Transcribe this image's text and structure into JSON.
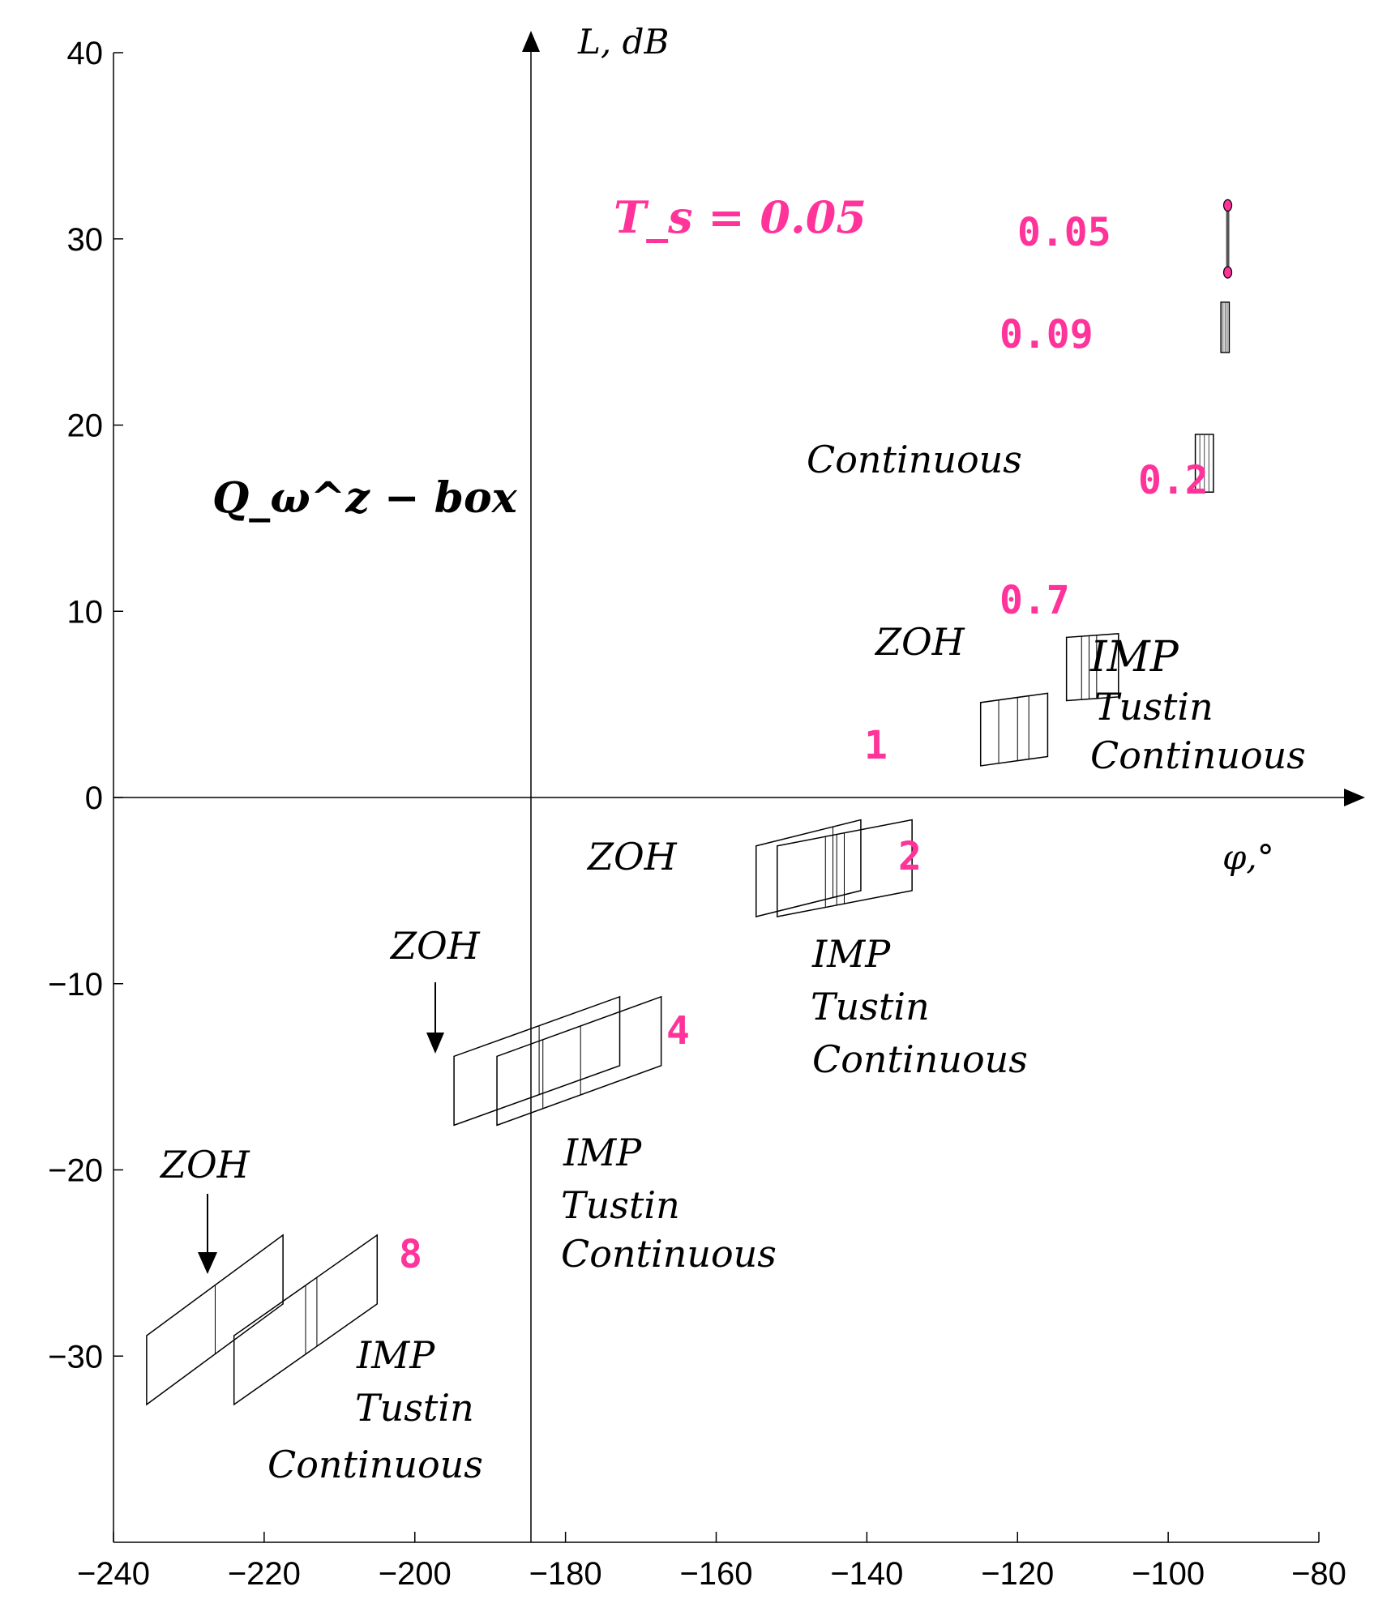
{
  "chart_data": {
    "type": "scatter",
    "title": "Q_ω^z − box",
    "subtitle": "T_s = 0.05",
    "xlabel": "φ,°",
    "ylabel": "L, dB",
    "xlim": [
      -240,
      -80
    ],
    "ylim": [
      -40,
      40
    ],
    "grid": false,
    "colors": {
      "axis": "#000000",
      "box": "#000000",
      "freq_label": "#ff3399",
      "title": "#ff3399"
    },
    "x_ticks": [
      {
        "value": -240,
        "label": "−240"
      },
      {
        "value": -220,
        "label": "−220"
      },
      {
        "value": -200,
        "label": "−200"
      },
      {
        "value": -180,
        "label": "−180"
      },
      {
        "value": -160,
        "label": "−160"
      },
      {
        "value": -140,
        "label": "−140"
      },
      {
        "value": -120,
        "label": "−120"
      },
      {
        "value": -100,
        "label": "−100"
      },
      {
        "value": -80,
        "label": "−80"
      }
    ],
    "y_ticks": [
      {
        "value": 40,
        "label": "40"
      },
      {
        "value": 30,
        "label": "30"
      },
      {
        "value": 20,
        "label": "20"
      },
      {
        "value": 10,
        "label": "10"
      },
      {
        "value": 0,
        "label": "0"
      },
      {
        "value": -10,
        "label": "−10"
      },
      {
        "value": -20,
        "label": "−20"
      },
      {
        "value": -30,
        "label": "−30"
      }
    ],
    "boxes": [
      {
        "freq": "0.05",
        "variant": "line",
        "x": -92.1,
        "y0": 28.2,
        "y1": 31.8,
        "dots": true
      },
      {
        "freq": "0.09",
        "variant": "rect",
        "x": -93.0,
        "w": 1.1,
        "y0": 23.9,
        "y1": 26.6
      },
      {
        "freq": "0.2",
        "variant": "rect",
        "x": -96.4,
        "w": 2.4,
        "y0": 16.4,
        "y1": 19.5
      },
      {
        "freq": "0.7",
        "variant": "para",
        "x0": -113.5,
        "x1": -106.6,
        "y0": 5.2,
        "y1": 8.6,
        "dy": 0.2,
        "inner": [
          -111.5,
          -110.5,
          -109.5
        ]
      },
      {
        "freq": "1",
        "variant": "para",
        "x0": -124.9,
        "x1": -116.0,
        "y0": 1.7,
        "y1": 5.1,
        "dy": 0.5,
        "inner": [
          -122.5,
          -120.0,
          -118.5
        ]
      },
      {
        "freq": "2 ZOH",
        "variant": "para",
        "x0": -154.7,
        "x1": -140.8,
        "y0": -6.4,
        "y1": -2.6,
        "dy": 1.4,
        "inner": [
          -144.5
        ]
      },
      {
        "freq": "2",
        "variant": "para",
        "x0": -151.9,
        "x1": -134.0,
        "y0": -6.4,
        "y1": -2.6,
        "dy": 1.4,
        "inner": [
          -145.5,
          -144.0,
          -143.0
        ]
      },
      {
        "freq": "4 ZOH",
        "variant": "para",
        "x0": -194.8,
        "x1": -172.8,
        "y0": -17.6,
        "y1": -13.9,
        "dy": 3.2,
        "inner": [
          -183.5
        ]
      },
      {
        "freq": "4",
        "variant": "para",
        "x0": -189.1,
        "x1": -167.3,
        "y0": -17.6,
        "y1": -13.9,
        "dy": 3.2,
        "inner": [
          -183.0,
          -178.0
        ]
      },
      {
        "freq": "8 ZOH",
        "variant": "para",
        "x0": -235.6,
        "x1": -217.5,
        "y0": -32.6,
        "y1": -28.9,
        "dy": 5.4,
        "inner": [
          -226.5
        ]
      },
      {
        "freq": "8",
        "variant": "para",
        "x0": -224.0,
        "x1": -205.0,
        "y0": -32.6,
        "y1": -28.9,
        "dy": 5.4,
        "inner": [
          -214.5,
          -213.0
        ]
      }
    ],
    "annotations": {
      "freq_labels": [
        "0.05",
        "0.09",
        "0.2",
        "0.7",
        "1",
        "2",
        "4",
        "8"
      ],
      "method_labels": {
        "continuous_top": "Continuous",
        "zoh": "ZOH",
        "imp": "IMP",
        "tustin": "Tustin",
        "continuous": "Continuous"
      }
    }
  }
}
